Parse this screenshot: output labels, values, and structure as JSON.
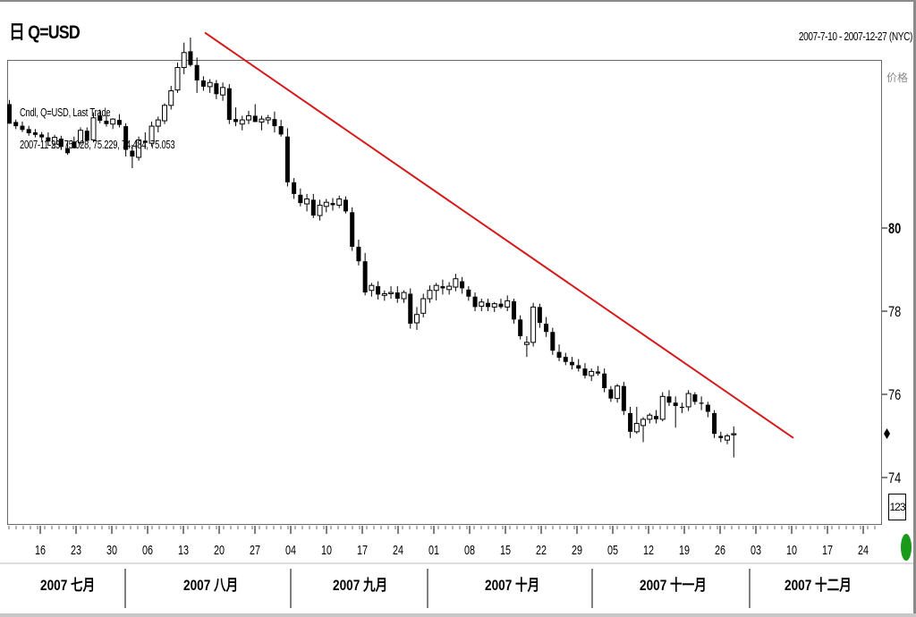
{
  "header": {
    "title_icon": "日",
    "title": "Q=USD",
    "date_range": "2007-7-10 - 2007-12-27 (NYC)"
  },
  "axis": {
    "price_label": "价格",
    "zoom_label": "123"
  },
  "info": {
    "line1": "Cndl, Q=USD, Last Trade",
    "line2": "2007-11-23, 75.028, 75.229, 74.484, 75.053"
  },
  "chart_data": {
    "type": "candlestick",
    "y_ticks": [
      80,
      78,
      76,
      74
    ],
    "y_tick_labels": [
      "80",
      "78",
      "76",
      "74"
    ],
    "x_tick_labels": [
      "16",
      "23",
      "30",
      "06",
      "13",
      "20",
      "27",
      "04",
      "10",
      "17",
      "24",
      "01",
      "08",
      "15",
      "22",
      "29",
      "05",
      "12",
      "19",
      "26",
      "03",
      "10",
      "17",
      "24"
    ],
    "months": [
      "2007 七月",
      "2007 八月",
      "2007 九月",
      "2007 十月",
      "2007 十一月",
      "2007 十二月"
    ],
    "trendline": {
      "start": [
        "2007-08-17",
        84.7
      ],
      "end": [
        "2007-12-11",
        74.95
      ],
      "color": "#d41a1a"
    },
    "ohlc": [
      [
        82.98,
        83.08,
        82.51,
        82.51
      ],
      [
        82.55,
        82.61,
        82.38,
        82.45
      ],
      [
        82.46,
        82.56,
        82.31,
        82.36
      ],
      [
        82.38,
        82.46,
        82.22,
        82.28
      ],
      [
        82.3,
        82.38,
        82.18,
        82.24
      ],
      [
        82.25,
        82.31,
        82.1,
        82.18
      ],
      [
        82.18,
        82.3,
        81.98,
        82.08
      ],
      [
        82.02,
        82.24,
        81.92,
        82.18
      ],
      [
        82.15,
        82.22,
        81.88,
        81.95
      ],
      [
        81.92,
        82.08,
        81.76,
        81.8
      ],
      [
        82.08,
        82.2,
        81.95,
        81.92
      ],
      [
        82.05,
        82.42,
        82.0,
        82.35
      ],
      [
        82.34,
        82.42,
        82.08,
        82.1
      ],
      [
        82.12,
        82.78,
        82.06,
        82.65
      ],
      [
        82.7,
        82.85,
        82.52,
        82.58
      ],
      [
        82.58,
        82.71,
        82.44,
        82.5
      ],
      [
        82.5,
        82.64,
        82.38,
        82.62
      ],
      [
        82.6,
        82.74,
        82.42,
        82.48
      ],
      [
        82.45,
        82.52,
        81.72,
        81.88
      ],
      [
        81.86,
        82.0,
        81.44,
        81.72
      ],
      [
        81.7,
        82.2,
        81.62,
        82.12
      ],
      [
        82.1,
        82.3,
        81.9,
        82.05
      ],
      [
        82.04,
        82.56,
        81.96,
        82.45
      ],
      [
        82.45,
        82.68,
        82.3,
        82.6
      ],
      [
        82.58,
        83.0,
        82.5,
        82.95
      ],
      [
        82.95,
        83.42,
        82.85,
        83.3
      ],
      [
        83.32,
        83.98,
        83.25,
        83.86
      ],
      [
        83.86,
        84.46,
        83.7,
        84.22
      ],
      [
        84.25,
        84.58,
        83.88,
        83.92
      ],
      [
        83.92,
        84.1,
        83.25,
        83.55
      ],
      [
        83.55,
        83.65,
        83.3,
        83.4
      ],
      [
        83.4,
        83.58,
        83.25,
        83.5
      ],
      [
        83.48,
        83.56,
        83.1,
        83.22
      ],
      [
        83.2,
        83.5,
        83.06,
        83.38
      ],
      [
        83.36,
        83.46,
        82.5,
        82.6
      ],
      [
        82.62,
        82.9,
        82.45,
        82.55
      ],
      [
        82.5,
        82.7,
        82.35,
        82.6
      ],
      [
        82.6,
        82.82,
        82.5,
        82.7
      ],
      [
        82.7,
        82.98,
        82.6,
        82.55
      ],
      [
        82.55,
        82.7,
        82.35,
        82.62
      ],
      [
        82.6,
        82.72,
        82.5,
        82.65
      ],
      [
        82.62,
        82.8,
        82.3,
        82.45
      ],
      [
        82.45,
        82.6,
        82.2,
        82.25
      ],
      [
        82.2,
        82.4,
        81.0,
        81.1
      ],
      [
        81.1,
        81.2,
        80.7,
        80.82
      ],
      [
        80.8,
        80.95,
        80.52,
        80.6
      ],
      [
        80.58,
        80.82,
        80.4,
        80.7
      ],
      [
        80.68,
        80.82,
        80.24,
        80.3
      ],
      [
        80.3,
        80.68,
        80.18,
        80.55
      ],
      [
        80.52,
        80.7,
        80.38,
        80.62
      ],
      [
        80.6,
        80.72,
        80.42,
        80.55
      ],
      [
        80.55,
        80.78,
        80.48,
        80.7
      ],
      [
        80.68,
        80.76,
        80.35,
        80.4
      ],
      [
        80.38,
        80.5,
        79.45,
        79.55
      ],
      [
        79.55,
        79.72,
        79.1,
        79.2
      ],
      [
        79.2,
        79.4,
        78.38,
        78.45
      ],
      [
        78.5,
        78.68,
        78.35,
        78.62
      ],
      [
        78.6,
        78.72,
        78.28,
        78.4
      ],
      [
        78.38,
        78.5,
        78.25,
        78.42
      ],
      [
        78.42,
        78.6,
        78.3,
        78.45
      ],
      [
        78.45,
        78.6,
        78.2,
        78.3
      ],
      [
        78.3,
        78.5,
        78.2,
        78.45
      ],
      [
        78.42,
        78.55,
        77.58,
        77.7
      ],
      [
        77.72,
        78.1,
        77.55,
        77.92
      ],
      [
        77.95,
        78.42,
        77.85,
        78.3
      ],
      [
        78.3,
        78.62,
        78.2,
        78.5
      ],
      [
        78.5,
        78.68,
        78.26,
        78.62
      ],
      [
        78.6,
        78.76,
        78.4,
        78.55
      ],
      [
        78.52,
        78.7,
        78.4,
        78.6
      ],
      [
        78.58,
        78.9,
        78.48,
        78.78
      ],
      [
        78.72,
        78.82,
        78.42,
        78.55
      ],
      [
        78.52,
        78.6,
        78.25,
        78.35
      ],
      [
        78.35,
        78.45,
        78.0,
        78.1
      ],
      [
        78.12,
        78.3,
        78.0,
        78.22
      ],
      [
        78.2,
        78.3,
        78.0,
        78.1
      ],
      [
        78.1,
        78.22,
        77.98,
        78.18
      ],
      [
        78.18,
        78.3,
        78.06,
        78.1
      ],
      [
        78.1,
        78.38,
        78.0,
        78.25
      ],
      [
        78.24,
        78.3,
        77.7,
        77.8
      ],
      [
        77.8,
        77.9,
        77.32,
        77.4
      ],
      [
        77.2,
        77.4,
        76.9,
        77.25
      ],
      [
        77.25,
        78.2,
        77.15,
        78.1
      ],
      [
        78.1,
        78.18,
        77.6,
        77.72
      ],
      [
        77.7,
        77.86,
        77.38,
        77.5
      ],
      [
        77.5,
        77.6,
        76.95,
        77.05
      ],
      [
        77.02,
        77.2,
        76.8,
        76.88
      ],
      [
        76.9,
        77.0,
        76.7,
        76.78
      ],
      [
        76.78,
        76.9,
        76.6,
        76.7
      ],
      [
        76.7,
        76.85,
        76.55,
        76.62
      ],
      [
        76.62,
        76.75,
        76.38,
        76.45
      ],
      [
        76.45,
        76.62,
        76.32,
        76.55
      ],
      [
        76.55,
        76.68,
        76.45,
        76.5
      ],
      [
        76.5,
        76.62,
        76.05,
        76.15
      ],
      [
        76.12,
        76.2,
        75.82,
        75.9
      ],
      [
        75.9,
        76.25,
        75.8,
        76.2
      ],
      [
        76.2,
        76.3,
        75.5,
        75.6
      ],
      [
        75.55,
        75.7,
        74.95,
        75.1
      ],
      [
        75.1,
        75.7,
        75.05,
        75.3
      ],
      [
        75.25,
        75.45,
        74.85,
        75.4
      ],
      [
        75.4,
        75.55,
        75.3,
        75.5
      ],
      [
        75.48,
        75.62,
        75.3,
        75.4
      ],
      [
        75.4,
        76.05,
        75.35,
        75.95
      ],
      [
        75.95,
        76.1,
        75.72,
        75.8
      ],
      [
        75.8,
        75.95,
        75.2,
        75.72
      ],
      [
        75.7,
        75.8,
        75.55,
        75.68
      ],
      [
        75.7,
        76.1,
        75.6,
        76.02
      ],
      [
        76.0,
        76.05,
        75.75,
        75.82
      ],
      [
        75.8,
        75.95,
        75.62,
        75.78
      ],
      [
        75.75,
        75.82,
        75.45,
        75.58
      ],
      [
        75.55,
        75.62,
        74.95,
        75.05
      ],
      [
        75.0,
        75.1,
        74.85,
        74.95
      ],
      [
        74.9,
        75.05,
        74.8,
        75.0
      ],
      [
        75.028,
        75.229,
        74.484,
        75.053
      ]
    ]
  },
  "colors": {
    "trendline": "#d41a1a",
    "candle": "#000000",
    "status": "#1a9a1a"
  }
}
